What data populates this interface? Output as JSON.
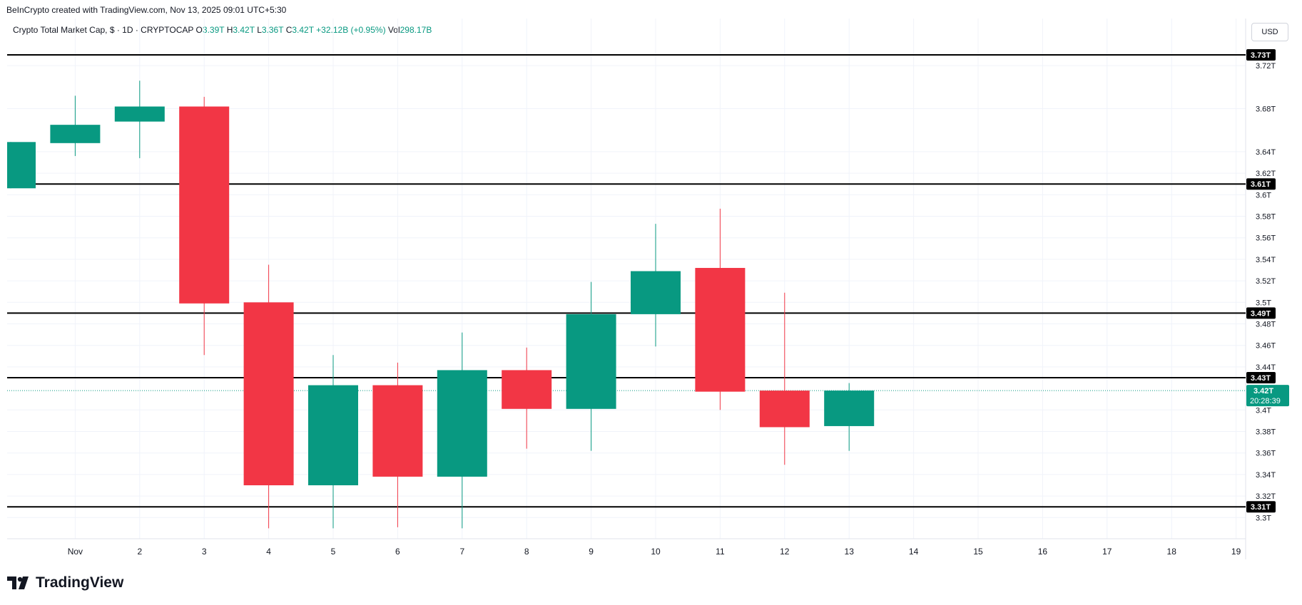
{
  "header": {
    "credit": "BeInCrypto created with TradingView.com, Nov 13, 2025 09:01 UTC+5:30"
  },
  "legend": {
    "symbol": "Crypto Total Market Cap, $ · 1D · CRYPTOCAP",
    "o_label": "O",
    "o_value": "3.39T",
    "h_label": "H",
    "h_value": "3.42T",
    "l_label": "L",
    "l_value": "3.36T",
    "c_label": "C",
    "c_value": "3.42T",
    "change": "+32.12B (+0.95%)",
    "vol_label": "Vol",
    "vol_value": "298.17B"
  },
  "currency_button": "USD",
  "branding": {
    "logo_text": "TradingView"
  },
  "colors": {
    "up": "#089981",
    "down": "#f23645",
    "level_line": "#000000",
    "grid": "#f0f3fa",
    "axis_text": "#131722"
  },
  "chart_data": {
    "type": "candlestick",
    "title": "Crypto Total Market Cap, $ · 1D · CRYPTOCAP",
    "ylim": [
      3.29,
      3.74
    ],
    "x_ticks": [
      "Nov",
      "2",
      "3",
      "4",
      "5",
      "6",
      "7",
      "8",
      "9",
      "10",
      "11",
      "12",
      "13",
      "14",
      "15",
      "16",
      "17",
      "18",
      "19"
    ],
    "y_ticks": [
      "3.72T",
      "3.68T",
      "3.64T",
      "3.62T",
      "3.6T",
      "3.58T",
      "3.56T",
      "3.54T",
      "3.52T",
      "3.5T",
      "3.48T",
      "3.46T",
      "3.44T",
      "3.4T",
      "3.38T",
      "3.36T",
      "3.34T",
      "3.32T",
      "3.3T"
    ],
    "y_tick_values": [
      3.72,
      3.68,
      3.64,
      3.62,
      3.6,
      3.58,
      3.56,
      3.54,
      3.52,
      3.5,
      3.48,
      3.46,
      3.44,
      3.4,
      3.38,
      3.36,
      3.34,
      3.32,
      3.3
    ],
    "candles": [
      {
        "date": "Oct 31",
        "open": 3.606,
        "high": 3.649,
        "low": 3.606,
        "close": 3.649
      },
      {
        "date": "Nov 1",
        "open": 3.648,
        "high": 3.692,
        "low": 3.636,
        "close": 3.665
      },
      {
        "date": "Nov 2",
        "open": 3.668,
        "high": 3.706,
        "low": 3.634,
        "close": 3.682
      },
      {
        "date": "Nov 3",
        "open": 3.682,
        "high": 3.691,
        "low": 3.451,
        "close": 3.499
      },
      {
        "date": "Nov 4",
        "open": 3.5,
        "high": 3.535,
        "low": 3.29,
        "close": 3.33
      },
      {
        "date": "Nov 5",
        "open": 3.33,
        "high": 3.451,
        "low": 3.29,
        "close": 3.423
      },
      {
        "date": "Nov 6",
        "open": 3.423,
        "high": 3.444,
        "low": 3.291,
        "close": 3.338
      },
      {
        "date": "Nov 7",
        "open": 3.338,
        "high": 3.472,
        "low": 3.29,
        "close": 3.437
      },
      {
        "date": "Nov 8",
        "open": 3.437,
        "high": 3.458,
        "low": 3.364,
        "close": 3.401
      },
      {
        "date": "Nov 9",
        "open": 3.401,
        "high": 3.519,
        "low": 3.362,
        "close": 3.489
      },
      {
        "date": "Nov 10",
        "open": 3.489,
        "high": 3.573,
        "low": 3.459,
        "close": 3.529
      },
      {
        "date": "Nov 11",
        "open": 3.532,
        "high": 3.587,
        "low": 3.4,
        "close": 3.417
      },
      {
        "date": "Nov 12",
        "open": 3.418,
        "high": 3.509,
        "low": 3.349,
        "close": 3.384
      },
      {
        "date": "Nov 13",
        "open": 3.385,
        "high": 3.425,
        "low": 3.362,
        "close": 3.418
      }
    ],
    "levels": [
      {
        "value": 3.73,
        "label": "3.73T"
      },
      {
        "value": 3.61,
        "label": "3.61T"
      },
      {
        "value": 3.49,
        "label": "3.49T"
      },
      {
        "value": 3.43,
        "label": "3.43T"
      },
      {
        "value": 3.31,
        "label": "3.31T"
      }
    ],
    "last_price": {
      "value": 3.418,
      "label": "3.42T",
      "countdown": "20:28:39"
    },
    "grid": true
  }
}
